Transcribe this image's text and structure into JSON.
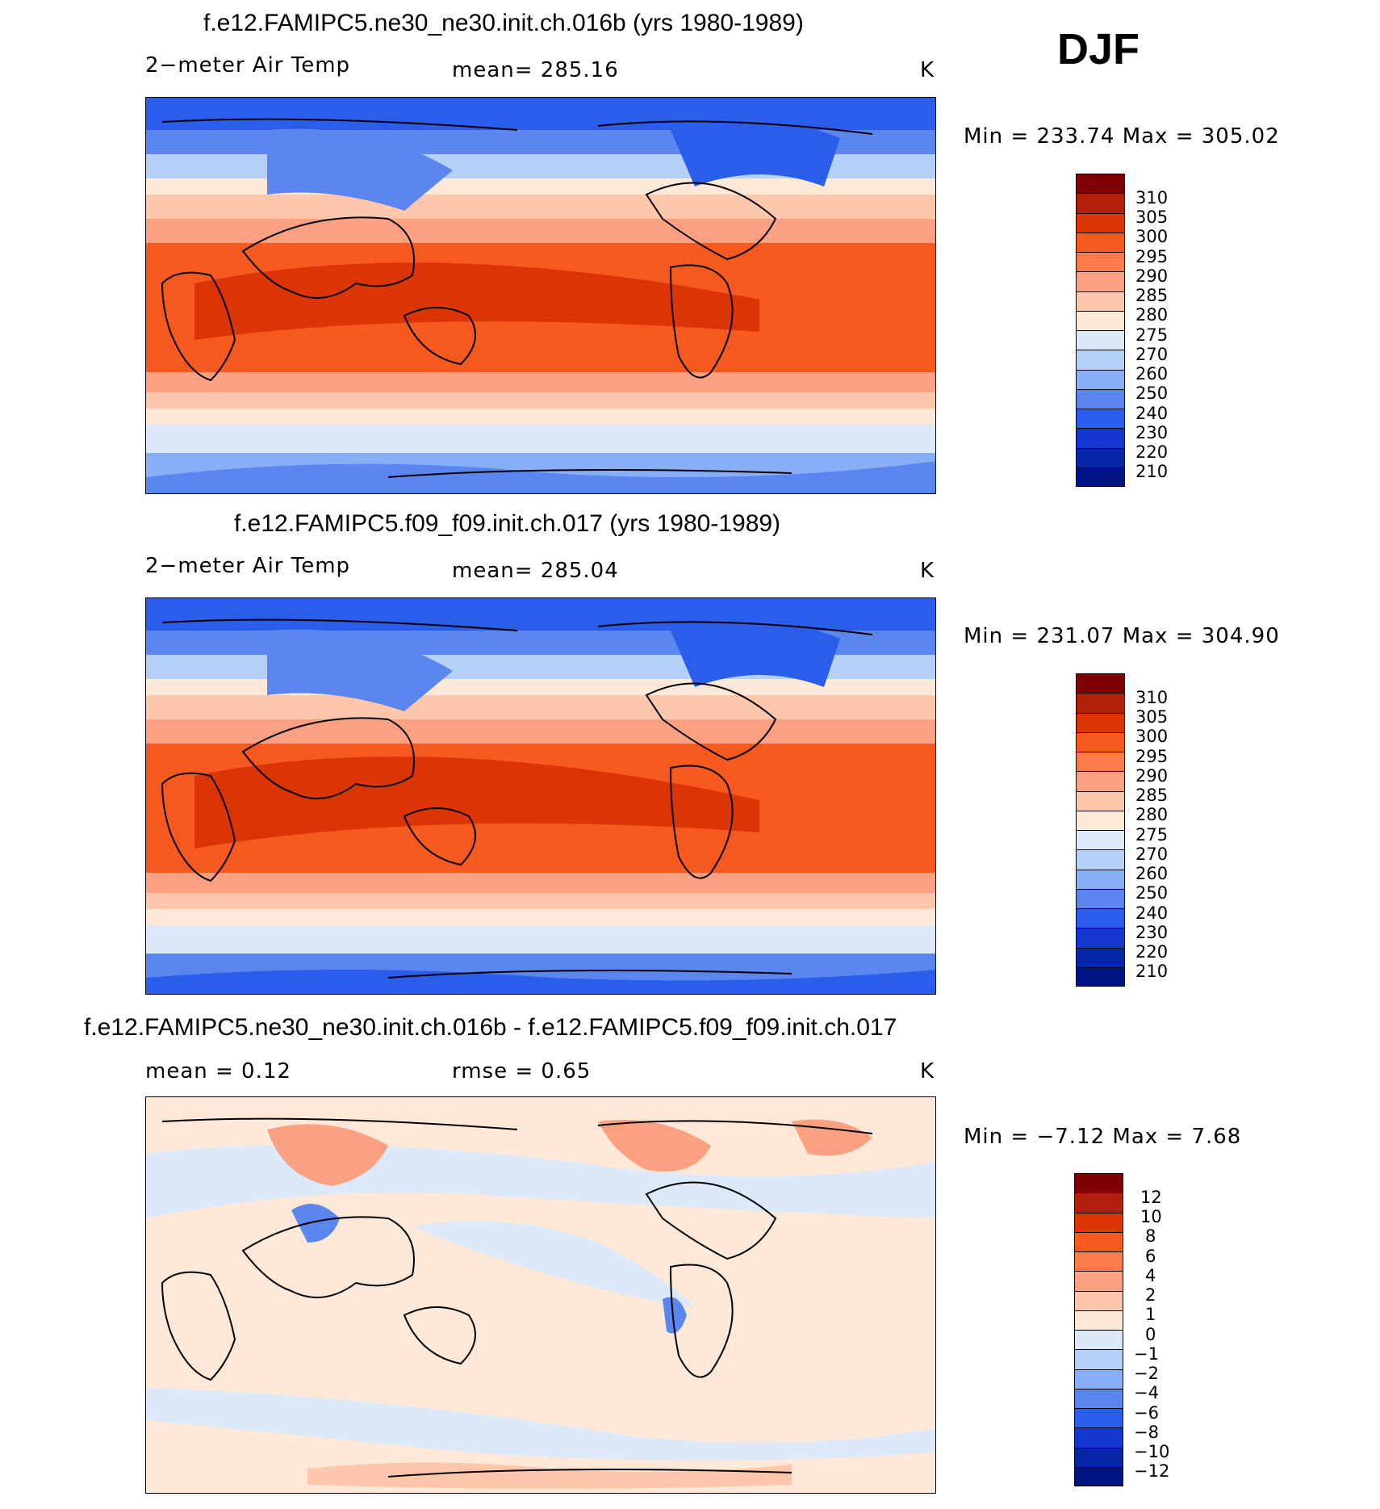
{
  "season": "DJF",
  "panels": [
    {
      "id": "test",
      "title": "f.e12.FAMIPC5.ne30_ne30.init.ch.016b (yrs 1980-1989)",
      "variable": "2−meter Air Temp",
      "stat_text": "mean=  285.16",
      "units": "K",
      "minmax": "Min  =  233.74  Max  =  305.02",
      "colorbar_labels": [
        "310",
        "305",
        "300",
        "295",
        "290",
        "285",
        "280",
        "275",
        "270",
        "260",
        "250",
        "240",
        "230",
        "220",
        "210"
      ]
    },
    {
      "id": "control",
      "title": "f.e12.FAMIPC5.f09_f09.init.ch.017 (yrs 1980-1989)",
      "variable": "2−meter Air Temp",
      "stat_text": "mean=  285.04",
      "units": "K",
      "minmax": "Min  =  231.07  Max  =  304.90",
      "colorbar_labels": [
        "310",
        "305",
        "300",
        "295",
        "290",
        "285",
        "280",
        "275",
        "270",
        "260",
        "250",
        "240",
        "230",
        "220",
        "210"
      ]
    },
    {
      "id": "difference",
      "title": "f.e12.FAMIPC5.ne30_ne30.init.ch.016b - f.e12.FAMIPC5.f09_f09.init.ch.017",
      "variable": "mean  =     0.12",
      "stat_text": "rmse  =     0.65",
      "units": "K",
      "minmax": "Min  =    −7.12  Max  =     7.68",
      "colorbar_labels": [
        "12",
        "10",
        "8",
        "6",
        "4",
        "2",
        "1",
        "0",
        "−1",
        "−2",
        "−4",
        "−6",
        "−8",
        "−10",
        "−12"
      ]
    }
  ],
  "colors": {
    "temp_scale": [
      "#7f0000",
      "#b0200a",
      "#dc3505",
      "#f75a1e",
      "#fb7b4b",
      "#fca082",
      "#fdc7ab",
      "#fee8d8",
      "#dbe9f9",
      "#b5d0f7",
      "#88aef5",
      "#5b86f0",
      "#2a5de9",
      "#1237d0",
      "#0526a8",
      "#001386"
    ],
    "diff_scale": [
      "#7f0000",
      "#b0200a",
      "#dc3505",
      "#f75a1e",
      "#fb7b4b",
      "#fca082",
      "#fdc7ab",
      "#fee8d8",
      "#dbe9f9",
      "#b5d0f7",
      "#88aef5",
      "#5b86f0",
      "#2a5de9",
      "#1237d0",
      "#0526a8",
      "#001386"
    ],
    "coastline": "#000000"
  }
}
